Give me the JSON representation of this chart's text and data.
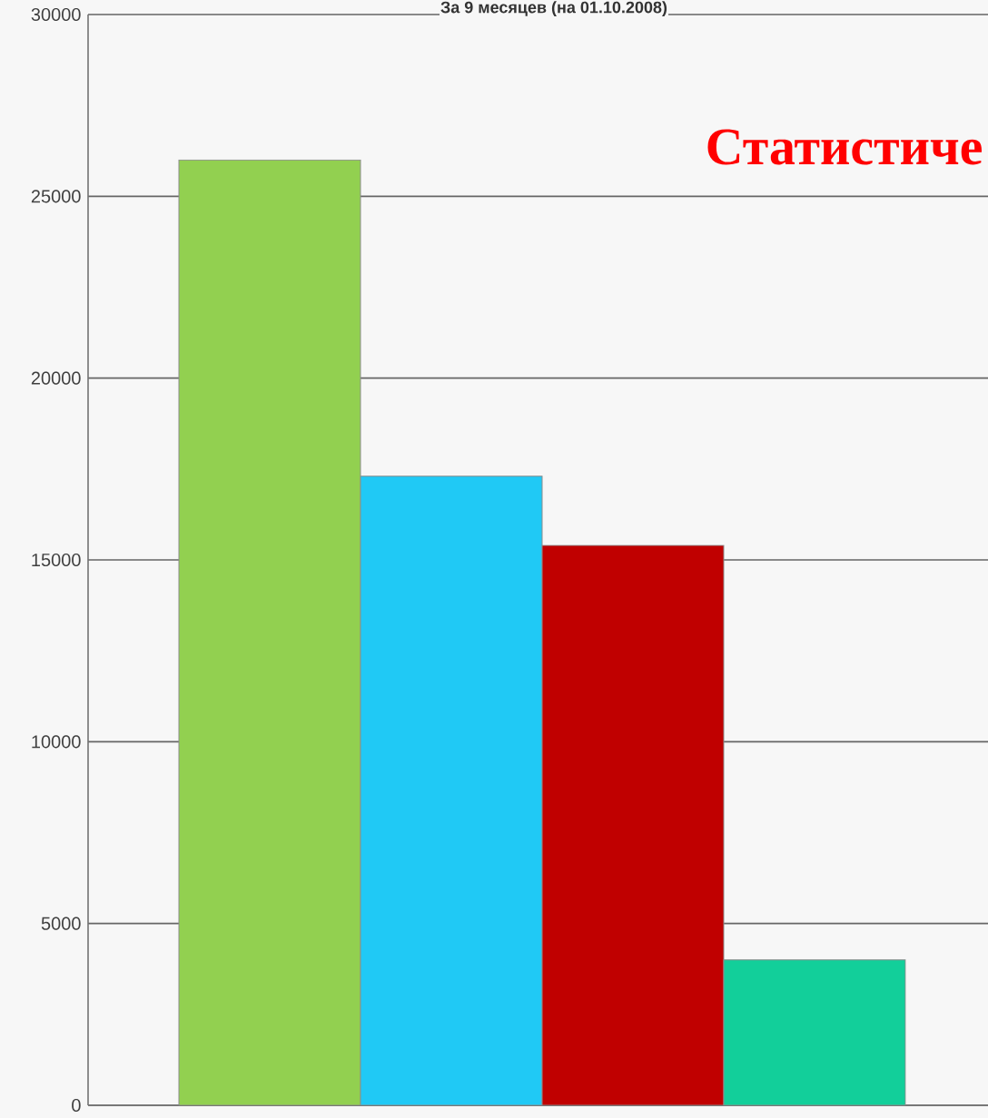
{
  "chart_data": {
    "type": "bar",
    "title": "Статистиче",
    "subtitle": "За 9 месяцев (на 01.10.2008)",
    "categories": [
      null,
      null,
      null,
      null
    ],
    "values": [
      26000,
      17300,
      15400,
      4000
    ],
    "colors": [
      "#92d050",
      "#20c9f5",
      "#c00000",
      "#12cf9a"
    ],
    "ylim": [
      0,
      30000
    ],
    "yticks": [
      0,
      5000,
      10000,
      15000,
      20000,
      25000,
      30000
    ],
    "grid": "y"
  }
}
